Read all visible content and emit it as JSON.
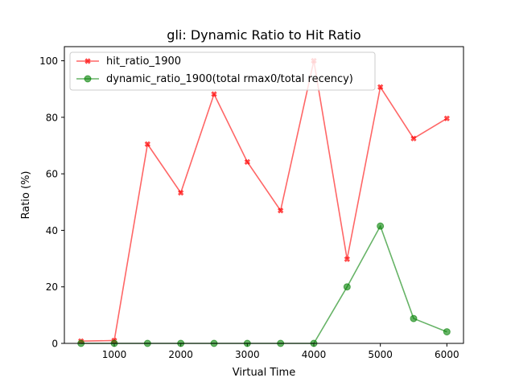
{
  "chart_data": {
    "type": "line",
    "title": "gli: Dynamic Ratio to Hit Ratio",
    "xlabel": "Virtual Time",
    "ylabel": "Ratio (%)",
    "xlim": [
      250,
      6250
    ],
    "ylim": [
      0,
      105
    ],
    "xticks": [
      1000,
      2000,
      3000,
      4000,
      5000,
      6000
    ],
    "yticks": [
      0,
      20,
      40,
      60,
      80,
      100
    ],
    "grid": false,
    "legend_position": "top-left",
    "x": [
      500,
      1000,
      1500,
      2000,
      2500,
      3000,
      3500,
      4000,
      4500,
      5000,
      5500,
      6000
    ],
    "series": [
      {
        "name": "hit_ratio_1900",
        "color": "#ff0000",
        "marker": "x-filled",
        "values": [
          0.8,
          1.0,
          70.5,
          53.3,
          88.2,
          64.2,
          47.0,
          100.0,
          29.8,
          90.7,
          72.5,
          79.6
        ]
      },
      {
        "name": "dynamic_ratio_1900(total rmax0/total recency)",
        "color": "#008000",
        "marker": "circle",
        "values": [
          0,
          0,
          0,
          0,
          0,
          0,
          0,
          0,
          20.0,
          41.5,
          8.8,
          4.1
        ]
      }
    ]
  }
}
